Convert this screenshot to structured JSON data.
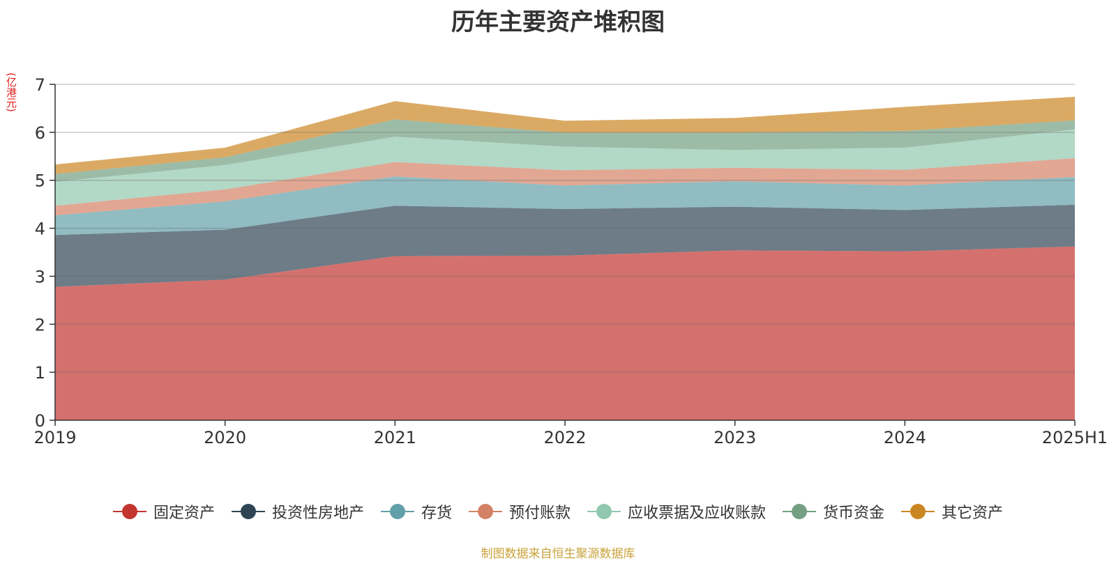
{
  "title": "历年主要资产堆积图",
  "source": "制图数据来自恒生聚源数据库",
  "chart_data": {
    "type": "area",
    "stacked": true,
    "unit_label": "(亿港元)",
    "categories": [
      "2019",
      "2020",
      "2021",
      "2022",
      "2023",
      "2024",
      "2025H1"
    ],
    "ylim": [
      0,
      7
    ],
    "yticks": [
      "0",
      "1",
      "2",
      "3",
      "4",
      "5",
      "6",
      "7"
    ],
    "grid": true,
    "legend_position": "bottom",
    "series": [
      {
        "name": "固定资产",
        "color": "#c23531",
        "line_color": "#c23531",
        "values": [
          2.78,
          2.93,
          3.42,
          3.43,
          3.54,
          3.52,
          3.62
        ]
      },
      {
        "name": "投资性房地产",
        "color": "#2f4554",
        "line_color": "#2f4554",
        "values": [
          1.08,
          1.04,
          1.05,
          0.97,
          0.91,
          0.86,
          0.87
        ]
      },
      {
        "name": "存货",
        "color": "#61a0a8",
        "line_color": "#61a0a8",
        "values": [
          0.41,
          0.59,
          0.61,
          0.49,
          0.53,
          0.51,
          0.58
        ]
      },
      {
        "name": "预付账款",
        "color": "#d48265",
        "line_color": "#d48265",
        "values": [
          0.2,
          0.25,
          0.3,
          0.32,
          0.28,
          0.33,
          0.39
        ]
      },
      {
        "name": "应收票据及应收账款",
        "color": "#91c7ae",
        "line_color": "#91c7ae",
        "values": [
          0.5,
          0.51,
          0.53,
          0.49,
          0.37,
          0.46,
          0.6
        ]
      },
      {
        "name": "货币资金",
        "color": "#749f83",
        "line_color": "#749f83",
        "values": [
          0.16,
          0.16,
          0.36,
          0.29,
          0.36,
          0.35,
          0.19
        ]
      },
      {
        "name": "其它资产",
        "color": "#ca8622",
        "line_color": "#ca8622",
        "values": [
          0.2,
          0.2,
          0.38,
          0.25,
          0.31,
          0.5,
          0.49
        ]
      }
    ]
  }
}
